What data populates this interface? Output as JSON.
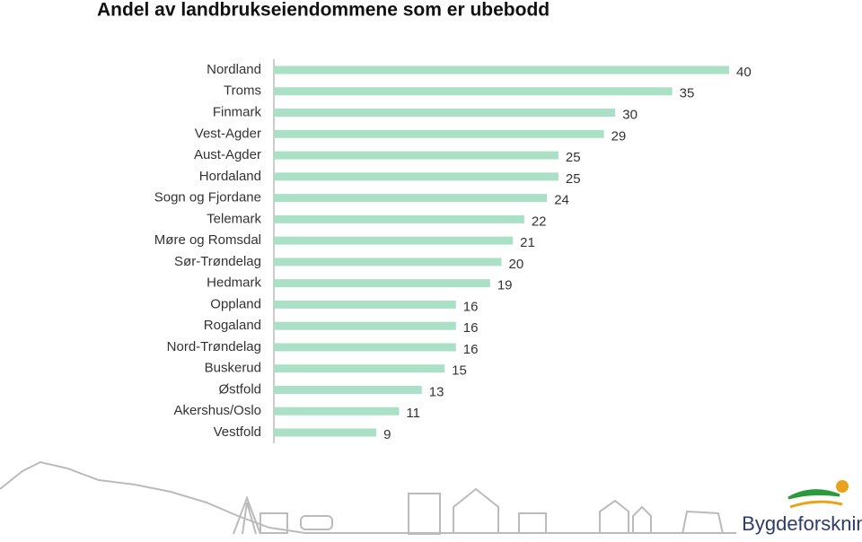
{
  "chart_data": {
    "type": "bar",
    "orientation": "horizontal",
    "title": "Andel av landbrukseiendommene som er ubebodd",
    "categories": [
      "Nordland",
      "Troms",
      "Finmark",
      "Vest-Agder",
      "Aust-Agder",
      "Hordaland",
      "Sogn og Fjordane",
      "Telemark",
      "Møre og Romsdal",
      "Sør-Trøndelag",
      "Hedmark",
      "Oppland",
      "Rogaland",
      "Nord-Trøndelag",
      "Buskerud",
      "Østfold",
      "Akershus/Oslo",
      "Vestfold"
    ],
    "values": [
      40,
      35,
      30,
      29,
      25,
      25,
      24,
      22,
      21,
      20,
      19,
      16,
      16,
      16,
      15,
      13,
      11,
      9
    ],
    "color": "#aae0c6"
  },
  "footer": {
    "logo": "Bygdeforskning"
  }
}
